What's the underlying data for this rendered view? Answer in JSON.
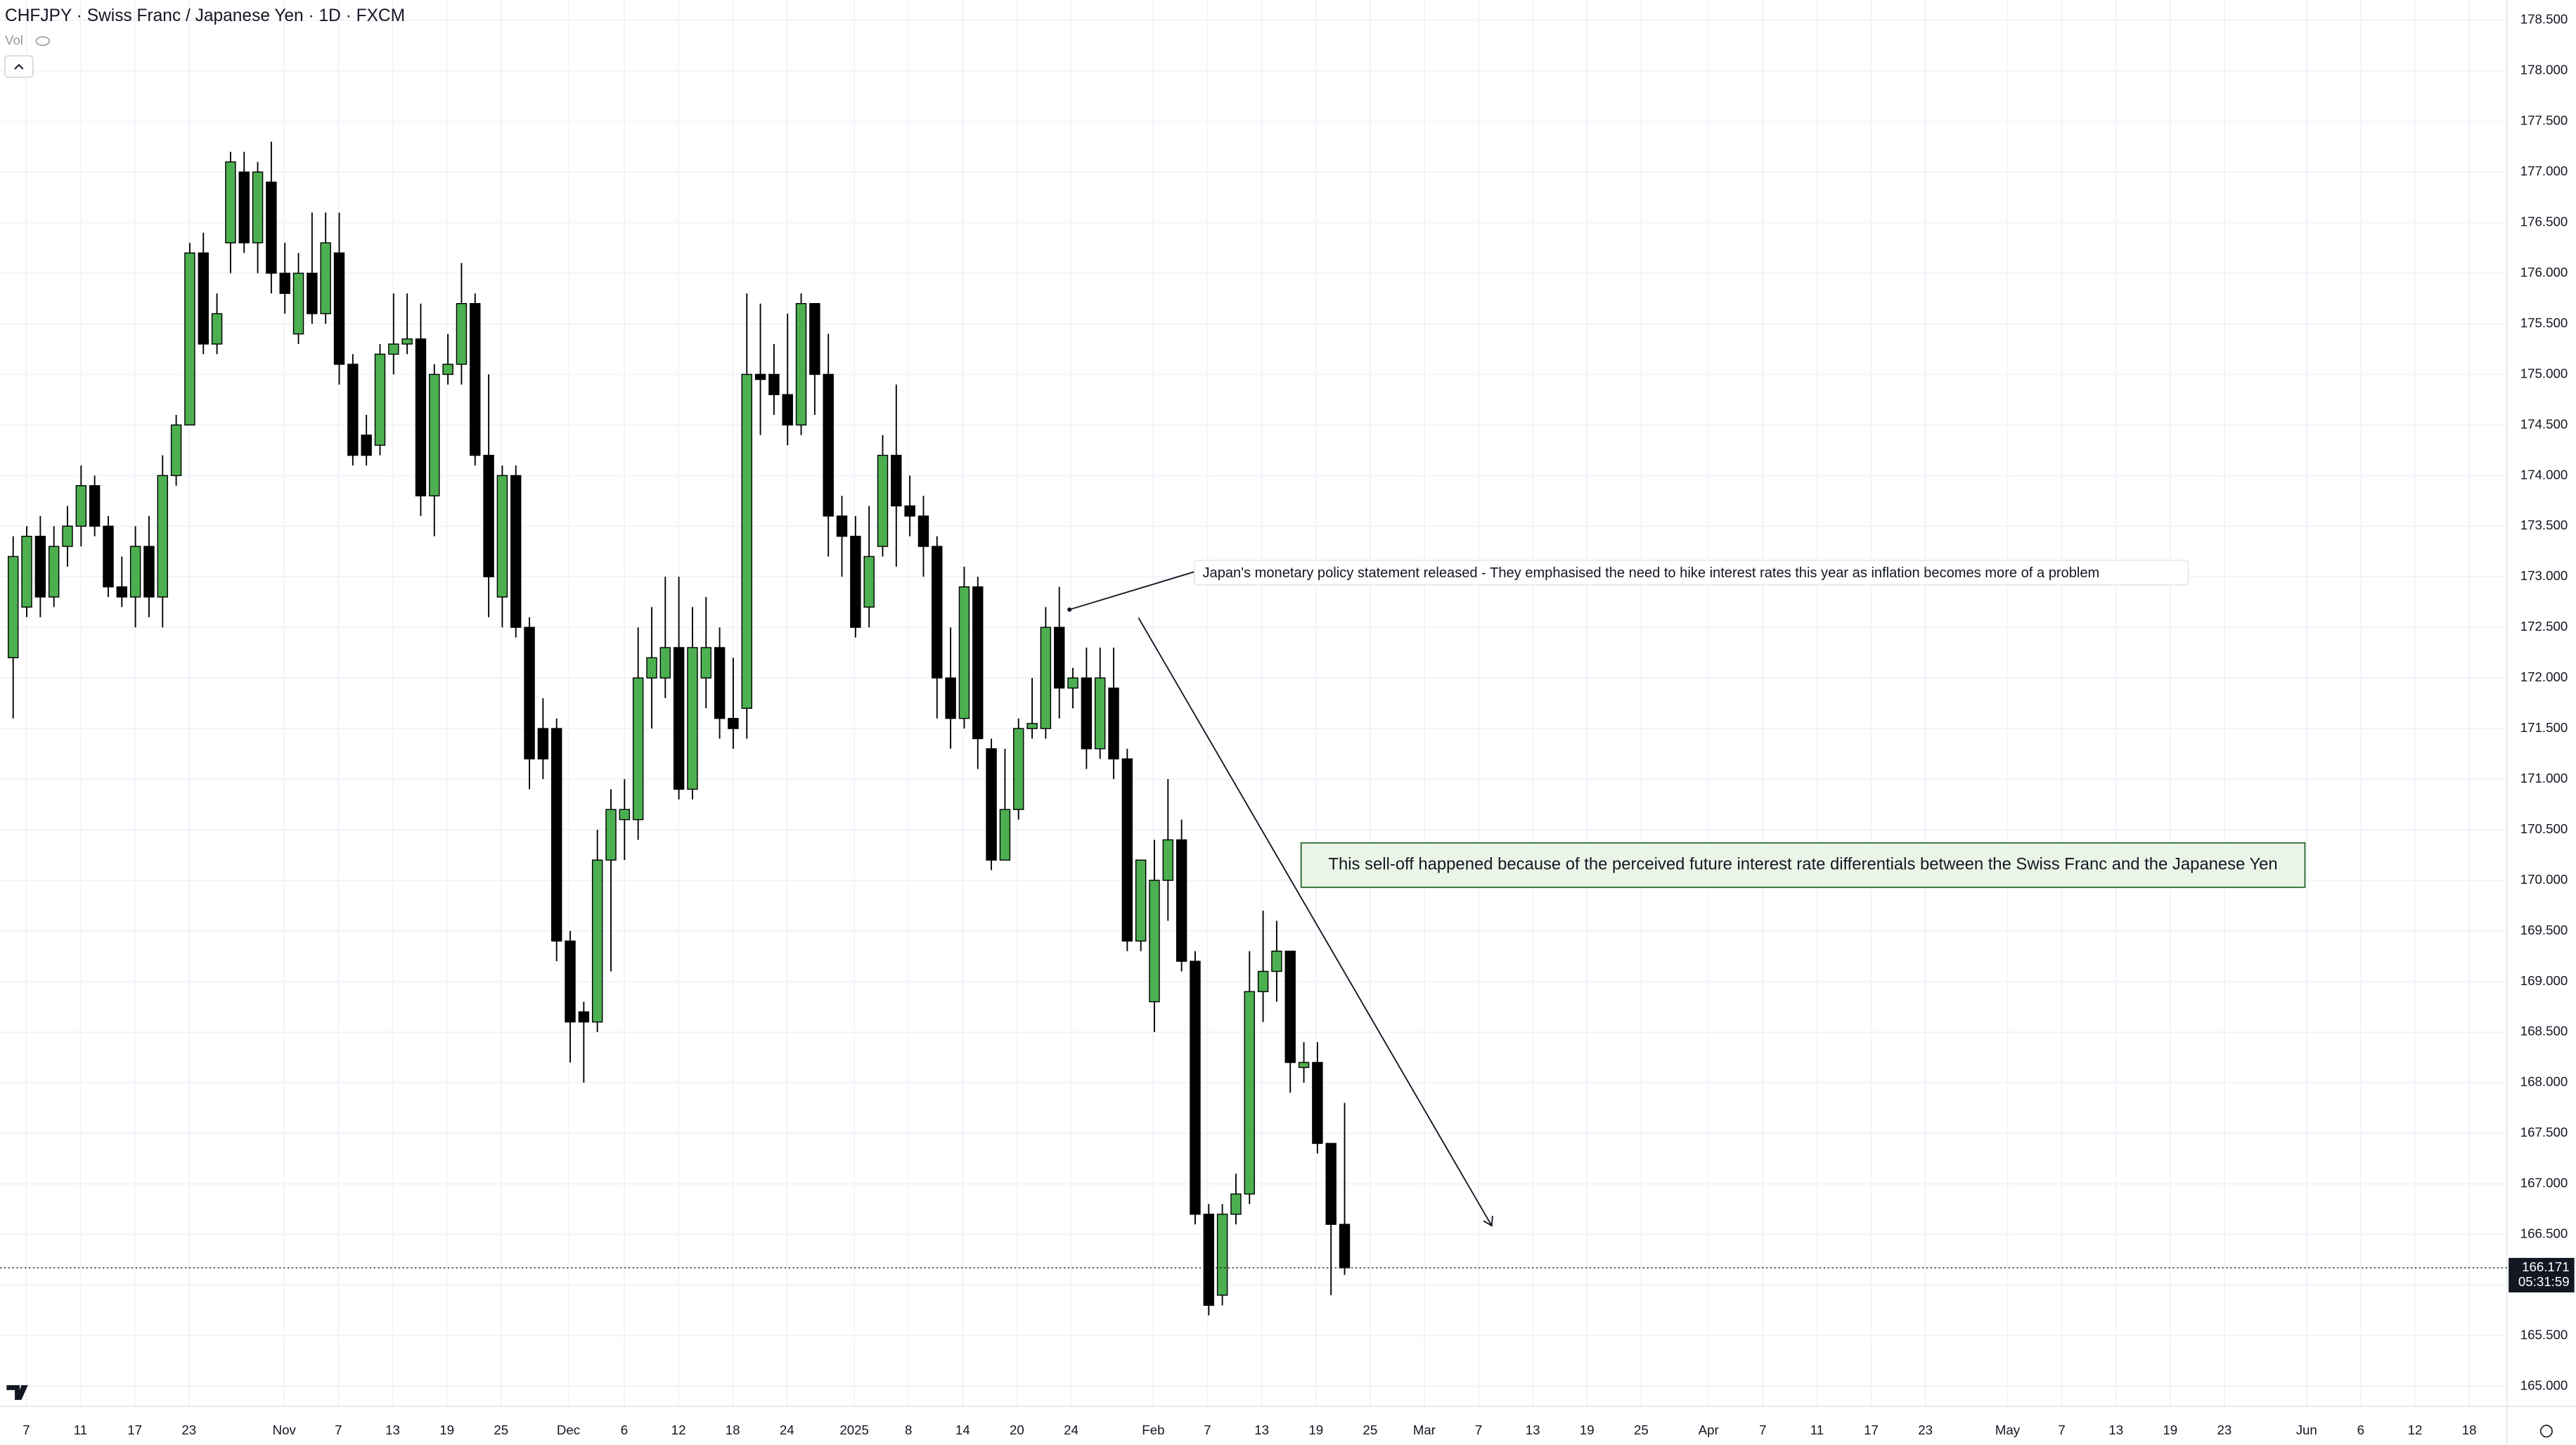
{
  "chart_data": {
    "type": "candlestick",
    "title": "CHFJPY · Swiss Franc / Japanese Yen · 1D · FXCM",
    "volume_label": "Vol",
    "ylim": [
      164.8,
      178.7
    ],
    "yticks": [
      {
        "value": 165,
        "label": "165.000"
      },
      {
        "value": 165.5,
        "label": "165.500"
      },
      {
        "value": 166,
        "label": "166.000"
      },
      {
        "value": 166.5,
        "label": "166.500"
      },
      {
        "value": 167,
        "label": "167.000"
      },
      {
        "value": 167.5,
        "label": "167.500"
      },
      {
        "value": 168,
        "label": "168.000"
      },
      {
        "value": 168.5,
        "label": "168.500"
      },
      {
        "value": 169,
        "label": "169.000"
      },
      {
        "value": 169.5,
        "label": "169.500"
      },
      {
        "value": 170,
        "label": "170.000"
      },
      {
        "value": 170.5,
        "label": "170.500"
      },
      {
        "value": 171,
        "label": "171.000"
      },
      {
        "value": 171.5,
        "label": "171.500"
      },
      {
        "value": 172,
        "label": "172.000"
      },
      {
        "value": 172.5,
        "label": "172.500"
      },
      {
        "value": 173,
        "label": "173.000"
      },
      {
        "value": 173.5,
        "label": "173.500"
      },
      {
        "value": 174,
        "label": "174.000"
      },
      {
        "value": 174.5,
        "label": "174.500"
      },
      {
        "value": 175,
        "label": "175.000"
      },
      {
        "value": 175.5,
        "label": "175.500"
      },
      {
        "value": 176,
        "label": "176.000"
      },
      {
        "value": 176.5,
        "label": "176.500"
      },
      {
        "value": 177,
        "label": "177.000"
      },
      {
        "value": 177.5,
        "label": "177.500"
      },
      {
        "value": 178,
        "label": "178.000"
      },
      {
        "value": 178.5,
        "label": "178.500"
      }
    ],
    "xtick_labels": [
      "7",
      "11",
      "17",
      "23",
      "Nov",
      "7",
      "13",
      "19",
      "25",
      "Dec",
      "6",
      "12",
      "18",
      "24",
      "2025",
      "8",
      "14",
      "20",
      "24",
      "Feb",
      "7",
      "13",
      "19",
      "25",
      "Mar",
      "7",
      "13",
      "19",
      "25",
      "Apr",
      "7",
      "11",
      "17",
      "23",
      "May",
      "7",
      "13",
      "19",
      "23",
      "Jun",
      "6",
      "12",
      "18"
    ],
    "grid": true,
    "up_color": "#4caf50",
    "down_color": "#000000",
    "ohlc": [
      [
        172.2,
        173.4,
        171.6,
        173.2
      ],
      [
        172.7,
        173.5,
        172.6,
        173.4
      ],
      [
        173.4,
        173.6,
        172.6,
        172.8
      ],
      [
        172.8,
        173.5,
        172.7,
        173.3
      ],
      [
        173.3,
        173.7,
        173.1,
        173.5
      ],
      [
        173.5,
        174.1,
        173.3,
        173.9
      ],
      [
        173.9,
        174.0,
        173.4,
        173.5
      ],
      [
        173.5,
        173.6,
        172.8,
        172.9
      ],
      [
        172.9,
        173.2,
        172.7,
        172.8
      ],
      [
        172.8,
        173.5,
        172.5,
        173.3
      ],
      [
        173.3,
        173.6,
        172.6,
        172.8
      ],
      [
        172.8,
        174.2,
        172.5,
        174.0
      ],
      [
        174.0,
        174.6,
        173.9,
        174.5
      ],
      [
        174.5,
        176.3,
        174.5,
        176.2
      ],
      [
        176.2,
        176.4,
        175.2,
        175.3
      ],
      [
        175.3,
        175.8,
        175.2,
        175.6
      ],
      [
        176.3,
        177.2,
        176.0,
        177.1
      ],
      [
        177.0,
        177.2,
        176.2,
        176.3
      ],
      [
        176.3,
        177.1,
        176.0,
        177.0
      ],
      [
        176.9,
        177.3,
        175.8,
        176.0
      ],
      [
        176.0,
        176.3,
        175.6,
        175.8
      ],
      [
        175.4,
        176.2,
        175.3,
        176.0
      ],
      [
        176.0,
        176.6,
        175.5,
        175.6
      ],
      [
        175.6,
        176.6,
        175.5,
        176.3
      ],
      [
        176.2,
        176.6,
        174.9,
        175.1
      ],
      [
        175.1,
        175.2,
        174.1,
        174.2
      ],
      [
        174.4,
        174.6,
        174.1,
        174.2
      ],
      [
        174.3,
        175.3,
        174.2,
        175.2
      ],
      [
        175.2,
        175.8,
        175.0,
        175.3
      ],
      [
        175.3,
        175.8,
        175.2,
        175.35
      ],
      [
        175.35,
        175.7,
        173.6,
        173.8
      ],
      [
        173.8,
        175.1,
        173.4,
        175.0
      ],
      [
        175.0,
        175.4,
        174.9,
        175.1
      ],
      [
        175.1,
        176.1,
        174.9,
        175.7
      ],
      [
        175.7,
        175.8,
        174.1,
        174.2
      ],
      [
        174.2,
        175.0,
        172.6,
        173.0
      ],
      [
        172.8,
        174.1,
        172.5,
        174.0
      ],
      [
        174.0,
        174.1,
        172.4,
        172.5
      ],
      [
        172.5,
        172.6,
        170.9,
        171.2
      ],
      [
        171.5,
        171.8,
        171.0,
        171.2
      ],
      [
        171.5,
        171.6,
        169.2,
        169.4
      ],
      [
        169.4,
        169.5,
        168.2,
        168.6
      ],
      [
        168.7,
        168.8,
        168.0,
        168.6
      ],
      [
        168.6,
        170.5,
        168.5,
        170.2
      ],
      [
        170.2,
        170.9,
        169.1,
        170.7
      ],
      [
        170.6,
        171.0,
        170.2,
        170.7
      ],
      [
        170.6,
        172.5,
        170.4,
        172.0
      ],
      [
        172.0,
        172.7,
        171.5,
        172.2
      ],
      [
        172.0,
        173.0,
        171.8,
        172.3
      ],
      [
        172.3,
        173.0,
        170.8,
        170.9
      ],
      [
        170.9,
        172.7,
        170.8,
        172.3
      ],
      [
        172.0,
        172.8,
        171.7,
        172.3
      ],
      [
        172.3,
        172.5,
        171.4,
        171.6
      ],
      [
        171.6,
        172.2,
        171.3,
        171.5
      ],
      [
        171.7,
        175.8,
        171.4,
        175.0
      ],
      [
        175.0,
        175.7,
        174.4,
        174.95
      ],
      [
        175.0,
        175.3,
        174.6,
        174.8
      ],
      [
        174.8,
        175.6,
        174.3,
        174.5
      ],
      [
        174.5,
        175.8,
        174.4,
        175.7
      ],
      [
        175.7,
        175.7,
        174.6,
        175.0
      ],
      [
        175.0,
        175.4,
        173.2,
        173.6
      ],
      [
        173.6,
        173.8,
        173.0,
        173.4
      ],
      [
        173.4,
        173.6,
        172.4,
        172.5
      ],
      [
        172.7,
        173.7,
        172.5,
        173.2
      ],
      [
        173.3,
        174.4,
        173.2,
        174.2
      ],
      [
        174.2,
        174.9,
        173.1,
        173.7
      ],
      [
        173.7,
        174.0,
        173.4,
        173.6
      ],
      [
        173.6,
        173.8,
        173.0,
        173.3
      ],
      [
        173.3,
        173.4,
        171.6,
        172.0
      ],
      [
        172.0,
        172.5,
        171.3,
        171.6
      ],
      [
        171.6,
        173.1,
        171.5,
        172.9
      ],
      [
        172.9,
        173.0,
        171.1,
        171.4
      ],
      [
        171.3,
        171.4,
        170.1,
        170.2
      ],
      [
        170.2,
        171.3,
        170.2,
        170.7
      ],
      [
        170.7,
        171.6,
        170.6,
        171.5
      ],
      [
        171.5,
        172.0,
        171.4,
        171.55
      ],
      [
        171.5,
        172.7,
        171.4,
        172.5
      ],
      [
        172.5,
        172.9,
        171.6,
        171.9
      ],
      [
        171.9,
        172.1,
        171.7,
        172.0
      ],
      [
        172.0,
        172.3,
        171.1,
        171.3
      ],
      [
        171.3,
        172.3,
        171.2,
        172.0
      ],
      [
        171.9,
        172.3,
        171.0,
        171.2
      ],
      [
        171.2,
        171.3,
        169.3,
        169.4
      ],
      [
        169.4,
        170.2,
        169.3,
        170.2
      ],
      [
        168.8,
        170.4,
        168.5,
        170.0
      ],
      [
        170.0,
        171.0,
        169.6,
        170.4
      ],
      [
        170.4,
        170.6,
        169.1,
        169.2
      ],
      [
        169.2,
        169.3,
        166.6,
        166.7
      ],
      [
        166.7,
        166.8,
        165.7,
        165.8
      ],
      [
        165.9,
        166.8,
        165.8,
        166.7
      ],
      [
        166.7,
        167.1,
        166.6,
        166.9
      ],
      [
        166.9,
        169.3,
        166.8,
        168.9
      ],
      [
        168.9,
        169.7,
        168.6,
        169.1
      ],
      [
        169.1,
        169.6,
        168.8,
        169.3
      ],
      [
        169.3,
        169.3,
        167.9,
        168.2
      ],
      [
        168.15,
        168.4,
        168.0,
        168.2
      ],
      [
        168.2,
        168.4,
        167.3,
        167.4
      ],
      [
        167.4,
        167.4,
        165.9,
        166.6
      ],
      [
        166.6,
        167.8,
        166.1,
        166.171
      ]
    ],
    "last_price": 166.171,
    "last_price_label": "166.171",
    "countdown": "05:31:59",
    "annotations": [
      "Japan's monetary policy statement released - They emphasised the need to hike interest rates this year as inflation becomes more of a problem",
      "This sell-off happened because of the perceived future interest rate differentials between the Swiss Franc and the Japanese Yen"
    ]
  }
}
